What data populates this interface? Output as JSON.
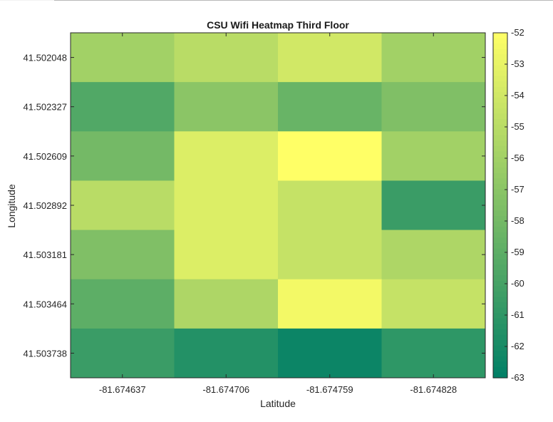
{
  "chart_data": {
    "type": "heatmap",
    "title": "CSU Wifi Heatmap Third Floor",
    "xlabel": "Latitude",
    "ylabel": "Longitude",
    "x_categories": [
      "-81.674637",
      "-81.674706",
      "-81.674759",
      "-81.674828"
    ],
    "y_categories": [
      "41.502048",
      "41.502327",
      "41.502609",
      "41.502892",
      "41.503181",
      "41.503464",
      "41.503738"
    ],
    "values": [
      [
        -56,
        -55,
        -54,
        -56
      ],
      [
        -59.5,
        -57,
        -58.5,
        -57.5
      ],
      [
        -58,
        -53.5,
        -52,
        -56
      ],
      [
        -55,
        -53.5,
        -54.5,
        -60.5
      ],
      [
        -57.5,
        -53.5,
        -54.5,
        -55.5
      ],
      [
        -59,
        -55.5,
        -52.5,
        -54.5
      ],
      [
        -60.5,
        -61.5,
        -62.5,
        -61
      ]
    ],
    "colorbar": {
      "min": -63,
      "max": -52,
      "ticks": [
        "-52",
        "-53",
        "-54",
        "-55",
        "-56",
        "-57",
        "-58",
        "-59",
        "-60",
        "-61",
        "-62",
        "-63"
      ],
      "colormap": "summer"
    },
    "grid": false
  }
}
